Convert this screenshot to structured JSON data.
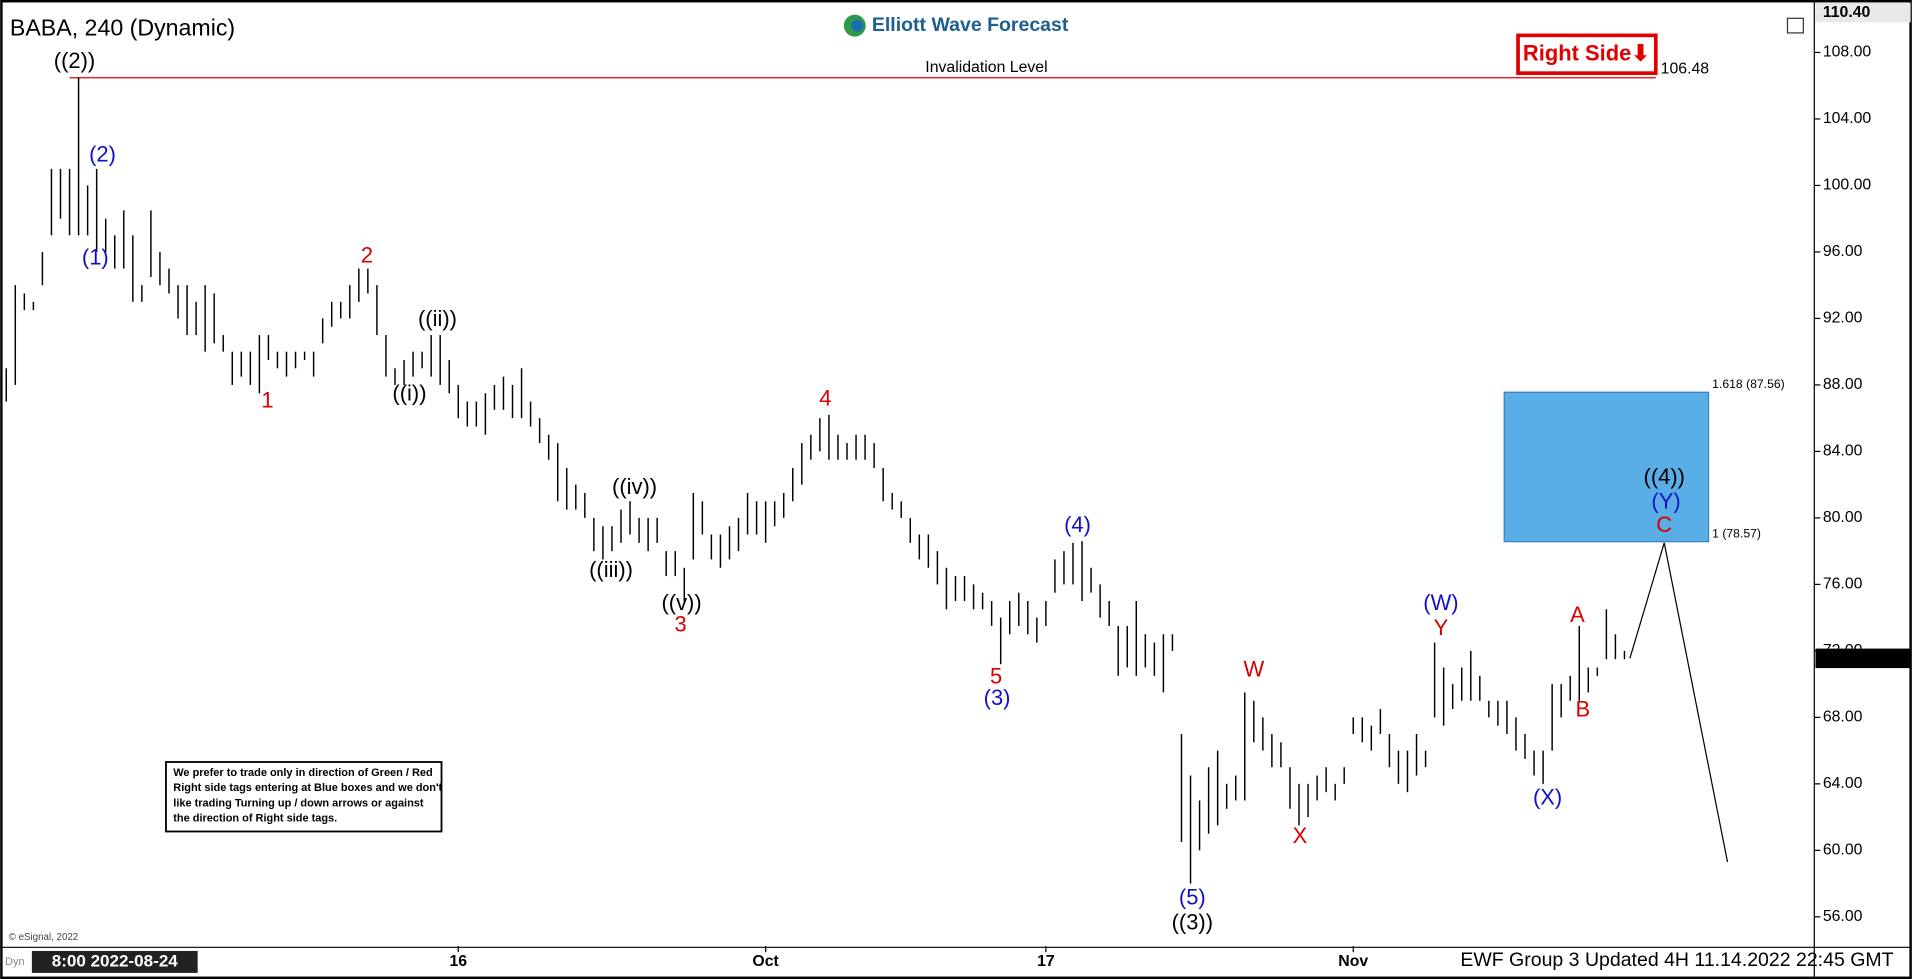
{
  "chart_data": {
    "type": "ohlc",
    "title": "BABA, 240 (Dynamic)",
    "logo": "Elliott Wave Forecast",
    "footer": "EWF Group 3 Updated 4H 11.14.2022 22:45 GMT",
    "copyright": "© eSignal, 2022",
    "cursor_label": "8:00 2022-08-24",
    "corner_label": "Dyn",
    "right_side_tag": "Right Side⬇",
    "disclaimer": [
      "We prefer to trade only in direction of Green / Red",
      "Right side tags entering at Blue boxes and we don't",
      "like trading Turning up / down arrows or against",
      "the direction of Right side tags."
    ],
    "bar_color": "#000000",
    "xlim": [
      0,
      200
    ],
    "ylim": [
      54.24,
      110.57
    ],
    "xticks": [
      {
        "value": 50,
        "label": "16"
      },
      {
        "value": 84,
        "label": "Oct"
      },
      {
        "value": 115,
        "label": "17"
      },
      {
        "value": 149,
        "label": "Nov"
      }
    ],
    "yticks": [
      {
        "value": 56,
        "label": "56.00"
      },
      {
        "value": 60,
        "label": "60.00"
      },
      {
        "value": 64,
        "label": "64.00"
      },
      {
        "value": 68,
        "label": "68.00"
      },
      {
        "value": 72,
        "label": "72.00"
      },
      {
        "value": 76,
        "label": "76.00"
      },
      {
        "value": 80,
        "label": "80.00"
      },
      {
        "value": 84,
        "label": "84.00"
      },
      {
        "value": 88,
        "label": "88.00"
      },
      {
        "value": 92,
        "label": "92.00"
      },
      {
        "value": 96,
        "label": "96.00"
      },
      {
        "value": 100,
        "label": "100.00"
      },
      {
        "value": 104,
        "label": "104.00"
      },
      {
        "value": 108,
        "label": "108.00"
      }
    ],
    "axis_top_value": {
      "value": 110.4,
      "label": "110.40"
    },
    "last_price": 71.55,
    "invalidation": {
      "label": "Invalidation Level",
      "value": 106.48,
      "color": "#e00000"
    },
    "blue_box": {
      "high": 87.56,
      "high_label": "1.618 (87.56)",
      "low": 78.57,
      "low_label": "1 (78.57)",
      "color": "#5aaee6"
    },
    "wave_labels": [
      {
        "text": "((2))",
        "color": "#000000"
      },
      {
        "text": "(2)",
        "color": "#1010c8"
      },
      {
        "text": "(1)",
        "color": "#1010c8"
      },
      {
        "text": "2",
        "color": "#d80000"
      },
      {
        "text": "1",
        "color": "#d80000"
      },
      {
        "text": "((ii))",
        "color": "#000000"
      },
      {
        "text": "((i))",
        "color": "#000000"
      },
      {
        "text": "4",
        "color": "#d80000"
      },
      {
        "text": "((iv))",
        "color": "#000000"
      },
      {
        "text": "((iii))",
        "color": "#000000"
      },
      {
        "text": "((v))",
        "color": "#000000"
      },
      {
        "text": "3",
        "color": "#d80000"
      },
      {
        "text": "(4)",
        "color": "#1010c8"
      },
      {
        "text": "5",
        "color": "#d80000"
      },
      {
        "text": "(3)",
        "color": "#1010c8"
      },
      {
        "text": "W",
        "color": "#d80000"
      },
      {
        "text": "X",
        "color": "#d80000"
      },
      {
        "text": "(5)",
        "color": "#1010c8"
      },
      {
        "text": "((3))",
        "color": "#000000"
      },
      {
        "text": "(W)",
        "color": "#1010c8"
      },
      {
        "text": "Y",
        "color": "#d80000"
      },
      {
        "text": "(X)",
        "color": "#1010c8"
      },
      {
        "text": "A",
        "color": "#d80000"
      },
      {
        "text": "B",
        "color": "#d80000"
      },
      {
        "text": "((4))",
        "color": "#000000"
      },
      {
        "text": "(Y)",
        "color": "#1010c8"
      },
      {
        "text": "C",
        "color": "#d80000"
      }
    ],
    "x": [
      0,
      1,
      2,
      3,
      4,
      5,
      6,
      7,
      8,
      9,
      10,
      11,
      12,
      13,
      14,
      15,
      16,
      17,
      18,
      19,
      20,
      21,
      22,
      23,
      24,
      25,
      26,
      27,
      28,
      29,
      30,
      31,
      32,
      33,
      34,
      35,
      36,
      37,
      38,
      39,
      40,
      41,
      42,
      43,
      44,
      45,
      46,
      47,
      48,
      49,
      50,
      51,
      52,
      53,
      54,
      55,
      56,
      57,
      58,
      59,
      60,
      61,
      62,
      63,
      64,
      65,
      66,
      67,
      68,
      69,
      70,
      71,
      72,
      73,
      74,
      75,
      76,
      77,
      78,
      79,
      80,
      81,
      82,
      83,
      84,
      85,
      86,
      87,
      88,
      89,
      90,
      91,
      92,
      93,
      94,
      95,
      96,
      97,
      98,
      99,
      100,
      101,
      102,
      103,
      104,
      105,
      106,
      107,
      108,
      109,
      110,
      111,
      112,
      113,
      114,
      115,
      116,
      117,
      118,
      119,
      120,
      121,
      122,
      123,
      124,
      125,
      126,
      127,
      128,
      129,
      130,
      131,
      132,
      133,
      134,
      135,
      136,
      137,
      138,
      139,
      140,
      141,
      142,
      143,
      144,
      145,
      146,
      147,
      148,
      149,
      150,
      151,
      152,
      153,
      154,
      155,
      156,
      157,
      158,
      159,
      160,
      161,
      162,
      163,
      164,
      165,
      166,
      167,
      168,
      169,
      170,
      171,
      172,
      173,
      174,
      175,
      176,
      177,
      178,
      179
    ],
    "high": [
      89,
      94,
      93.5,
      93,
      96,
      101,
      101,
      101,
      106.5,
      100,
      101,
      98,
      97,
      98.5,
      97,
      94,
      98.5,
      96,
      95,
      94,
      94,
      93,
      94,
      93.5,
      91,
      90,
      90,
      90,
      91,
      91,
      90,
      90,
      90,
      90,
      90,
      92,
      93,
      93,
      94,
      95,
      95,
      94,
      91,
      89,
      89.5,
      90,
      90,
      91,
      91,
      89.5,
      88,
      87,
      87,
      87.5,
      88,
      88.5,
      88,
      89,
      87,
      86,
      85,
      84.5,
      83,
      82,
      81.5,
      80,
      79.5,
      79.5,
      80.5,
      81,
      80,
      80,
      80,
      78,
      78,
      77,
      81.5,
      81,
      79,
      79,
      79.5,
      80,
      81.5,
      81,
      81,
      81,
      81.5,
      83,
      84.5,
      85,
      86,
      86.2,
      85,
      84.5,
      85,
      85,
      84.5,
      83,
      81.5,
      81,
      80,
      79,
      79,
      78,
      77,
      76.5,
      76.5,
      76,
      75.5,
      75,
      74,
      75,
      75.5,
      75,
      74,
      75,
      77.5,
      78,
      78.5,
      78.6,
      77,
      76,
      75,
      73.5,
      73.5,
      75,
      73,
      72.5,
      73,
      73,
      67,
      64.5,
      63,
      65,
      66,
      64,
      64.5,
      69.5,
      69,
      68,
      67,
      66.5,
      65,
      64,
      64,
      64.5,
      65,
      64,
      65,
      68,
      68,
      67.5,
      68.5,
      67,
      66,
      66,
      67,
      66,
      72.5,
      71,
      70,
      71,
      72,
      70.5,
      69,
      69,
      69,
      68,
      67,
      66,
      66,
      70,
      70,
      70.5,
      73.5,
      71,
      71,
      74.5,
      73,
      72
    ],
    "low": [
      87,
      88,
      92.5,
      92.5,
      94,
      97,
      98,
      97,
      97,
      97,
      96,
      96,
      95,
      95,
      93,
      93,
      94.5,
      94,
      93.5,
      92,
      91,
      91,
      90,
      90.5,
      90,
      88,
      88.5,
      88,
      87.5,
      89.5,
      89,
      88.5,
      89,
      89.5,
      88.5,
      90.5,
      91.5,
      92,
      92,
      93,
      93.5,
      91,
      88.5,
      88,
      88,
      88.5,
      89,
      88.5,
      88,
      87.5,
      86,
      85.5,
      85.5,
      85,
      86.5,
      86.5,
      86,
      86,
      85.5,
      84.5,
      83.5,
      81,
      80.5,
      80.5,
      80,
      78,
      77.5,
      78,
      78.5,
      79,
      78.5,
      78,
      78.5,
      76.5,
      76.5,
      75,
      77.5,
      79,
      77.5,
      77,
      77.5,
      78,
      79,
      79,
      78.5,
      79.5,
      80,
      81,
      82,
      83.5,
      84,
      83.5,
      83.5,
      83.5,
      83.5,
      83.5,
      83,
      81,
      80.5,
      80,
      78.5,
      77.5,
      77,
      76,
      74.5,
      75,
      75,
      74.5,
      74.5,
      73.5,
      71.2,
      73,
      73.5,
      73,
      72.5,
      73.5,
      75.5,
      76,
      76,
      75,
      75.5,
      74,
      73.5,
      70.5,
      71,
      70.5,
      71,
      70.5,
      69.5,
      72,
      60.5,
      58,
      60,
      61,
      61.5,
      62.5,
      63,
      63,
      66.5,
      66,
      65,
      65,
      62.5,
      61.5,
      62,
      63,
      63.5,
      63,
      64,
      67,
      66.5,
      66,
      67,
      65,
      64,
      63.5,
      64.5,
      65,
      68,
      67.5,
      68.5,
      69,
      69,
      69,
      68,
      67.5,
      67,
      66,
      65.5,
      64.5,
      64,
      66,
      68,
      69,
      69,
      69.5,
      70.5,
      71.5,
      71.5,
      71.5
    ]
  }
}
